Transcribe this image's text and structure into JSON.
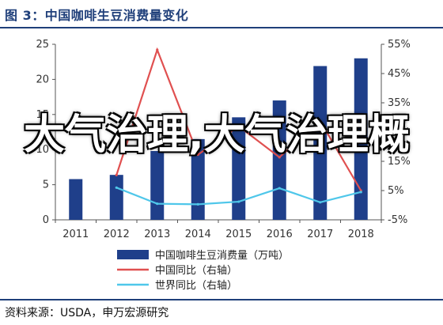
{
  "header": {
    "title": "图 3：中国咖啡生豆消费量变化"
  },
  "footer": {
    "source": "资料来源：USDA，申万宏源研究"
  },
  "overlay": {
    "watermark": "大气治理,大气治理概"
  },
  "chart_data": {
    "type": "bar",
    "categories": [
      "2011",
      "2012",
      "2013",
      "2014",
      "2015",
      "2016",
      "2017",
      "2018"
    ],
    "y_left": {
      "ylim": [
        0,
        25
      ],
      "ticks": [
        "0",
        "5",
        "10",
        "15",
        "20",
        "25"
      ]
    },
    "y_right": {
      "ylim": [
        -5,
        55
      ],
      "ticks": [
        "-5%",
        "5%",
        "15%",
        "25%",
        "35%",
        "45%",
        "55%"
      ]
    },
    "grid": false,
    "legend_position": "bottom",
    "series": [
      {
        "name": "中国咖啡生豆消费量（万吨）",
        "kind": "bar",
        "axis": "left",
        "color": "#1f3f8a",
        "values": [
          5.8,
          6.4,
          9.8,
          11.5,
          14.6,
          17.0,
          21.9,
          23.0
        ]
      },
      {
        "name": "中国同比（右轴）",
        "kind": "line",
        "axis": "right",
        "color": "#e05050",
        "values": [
          null,
          10.3,
          53.1,
          17.3,
          27.0,
          16.4,
          28.8,
          5.0
        ]
      },
      {
        "name": "世界同比（右轴）",
        "kind": "line",
        "axis": "right",
        "color": "#4fc7ea",
        "values": [
          null,
          6.0,
          0.5,
          0.3,
          1.2,
          5.8,
          1.0,
          4.5
        ]
      }
    ]
  }
}
